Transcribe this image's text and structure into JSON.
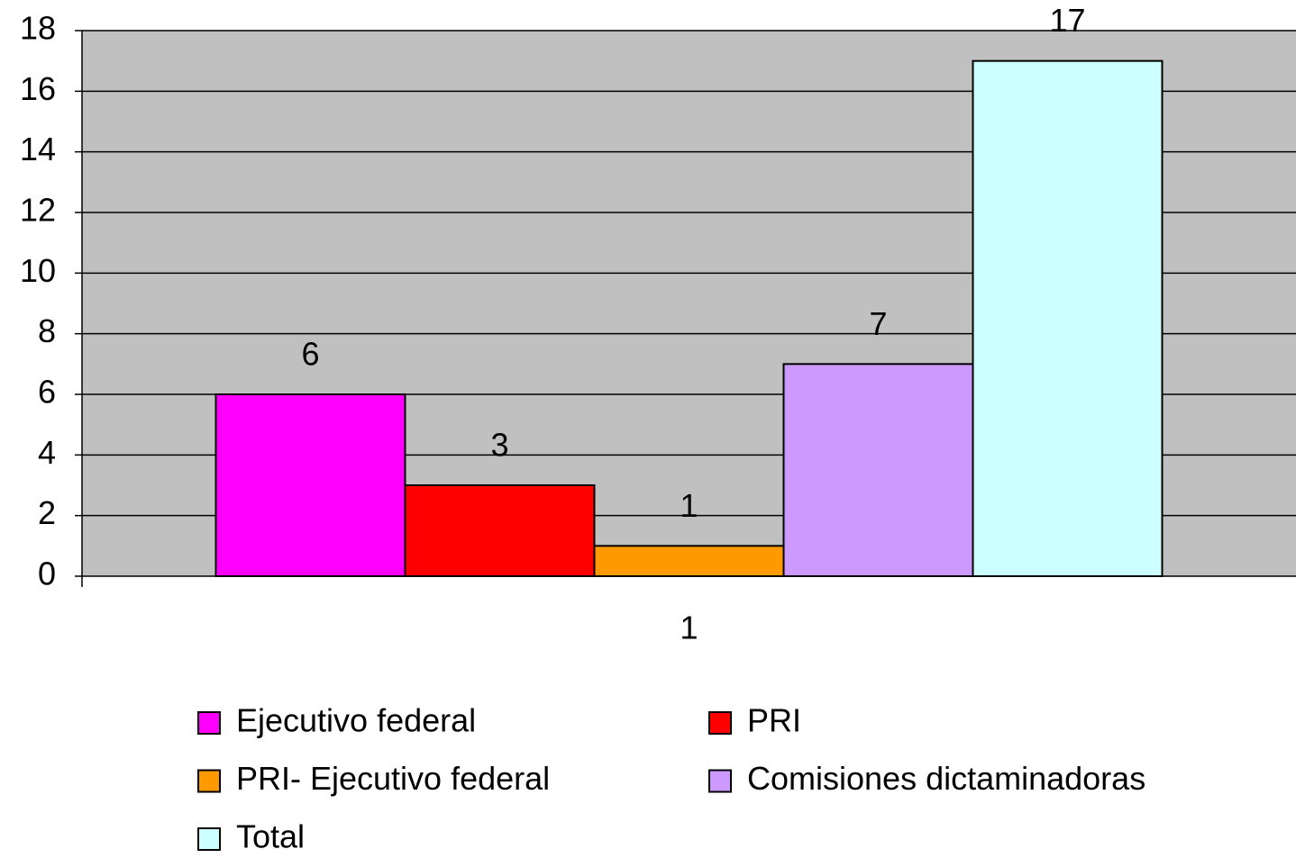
{
  "chart_data": {
    "type": "bar",
    "categories": [
      "1"
    ],
    "series": [
      {
        "name": "Ejecutivo federal",
        "color": "#ff00ff",
        "values": [
          6
        ]
      },
      {
        "name": "PRI",
        "color": "#ff0000",
        "values": [
          3
        ]
      },
      {
        "name": "PRI- Ejecutivo federal",
        "color": "#ff9900",
        "values": [
          1
        ]
      },
      {
        "name": "Comisiones dictaminadoras",
        "color": "#cc99ff",
        "values": [
          7
        ]
      },
      {
        "name": "Total",
        "color": "#ccffff",
        "values": [
          17
        ]
      }
    ],
    "ylim": [
      0,
      18
    ],
    "yticks": [
      0,
      2,
      4,
      6,
      8,
      10,
      12,
      14,
      16,
      18
    ],
    "grid": true,
    "legend": "bottom",
    "plot_background": "#c0c0c0"
  }
}
